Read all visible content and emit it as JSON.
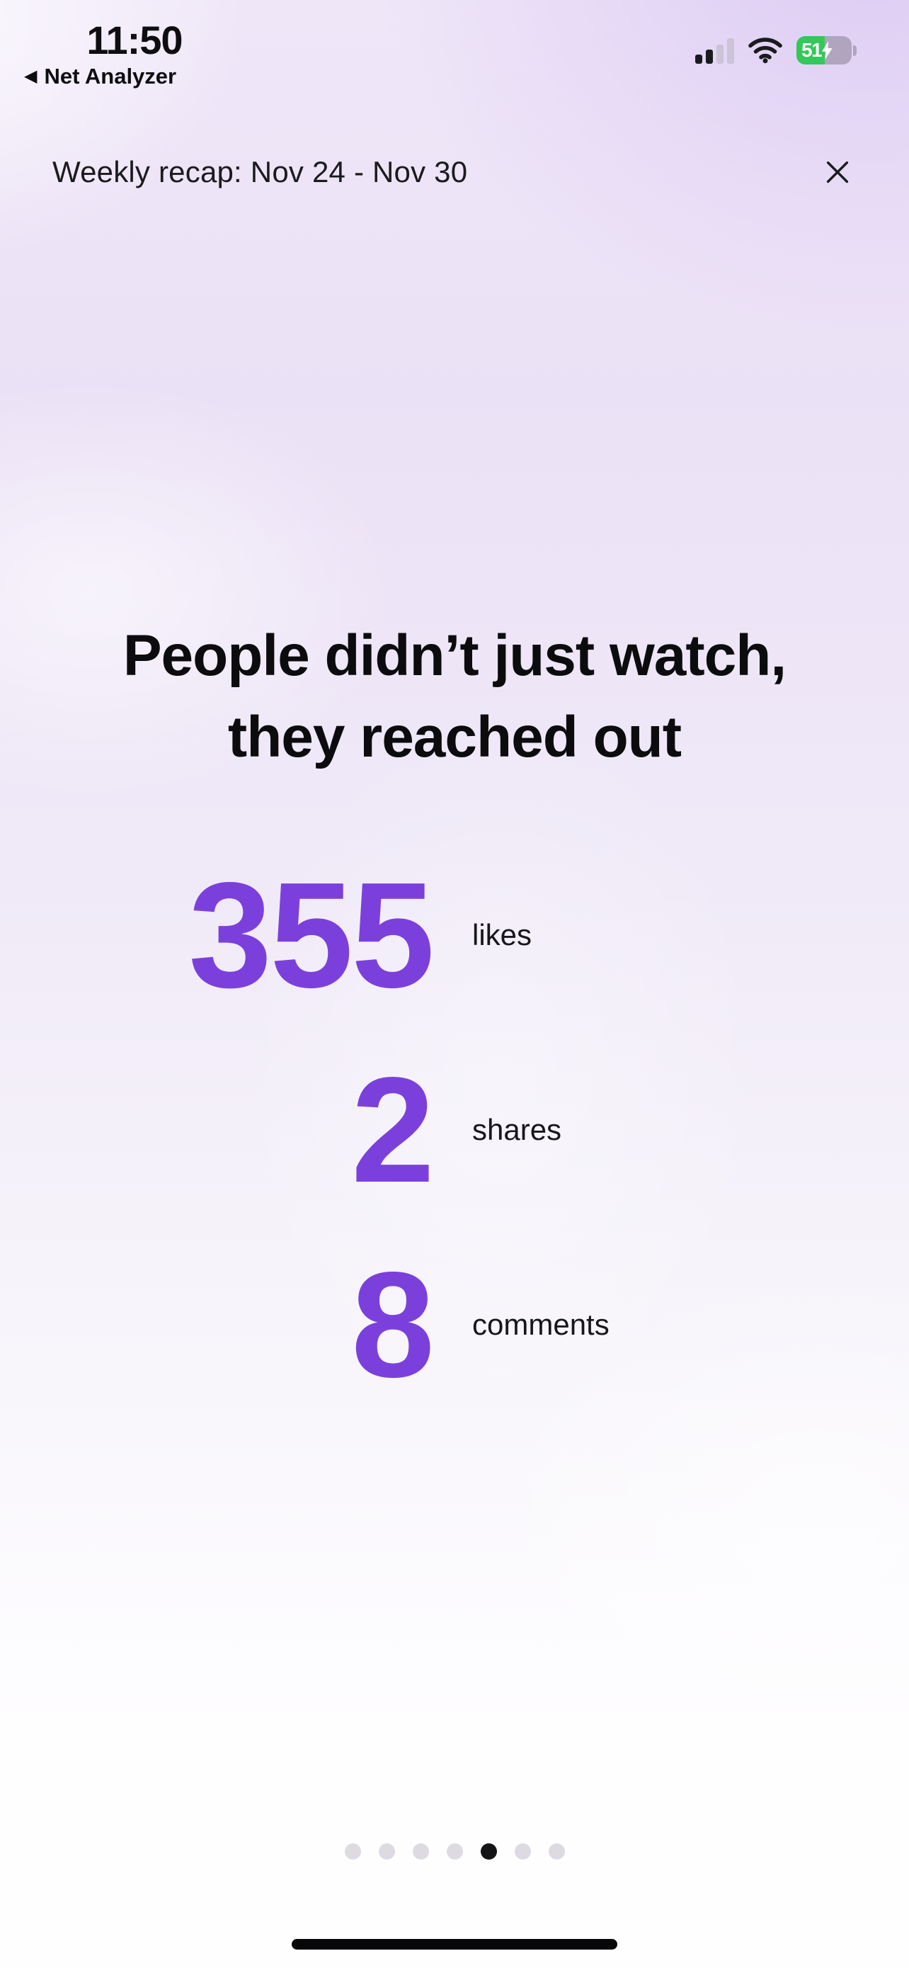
{
  "status_bar": {
    "time": "11:50",
    "back": {
      "label": "Net Analyzer",
      "icon": "back-triangle-icon"
    },
    "signal_icon": "cellular-signal-icon",
    "wifi_icon": "wifi-icon",
    "battery": {
      "percent": "51",
      "charging": true,
      "icon": "battery-charging-icon"
    }
  },
  "header": {
    "title": "Weekly recap: Nov 24 - Nov 30",
    "close_icon": "close-icon"
  },
  "recap": {
    "heading_line1": "People didn’t just watch,",
    "heading_line2": "they reached out",
    "stats": [
      {
        "value": "355",
        "label": "likes"
      },
      {
        "value": "2",
        "label": "shares"
      },
      {
        "value": "8",
        "label": "comments"
      }
    ]
  },
  "pagination": {
    "total": 7,
    "active_index": 4
  },
  "colors": {
    "accent": "#7B40DC",
    "battery_green": "#34C759",
    "dot_active": "#141417",
    "dot_inactive": "#DDDBE1"
  }
}
